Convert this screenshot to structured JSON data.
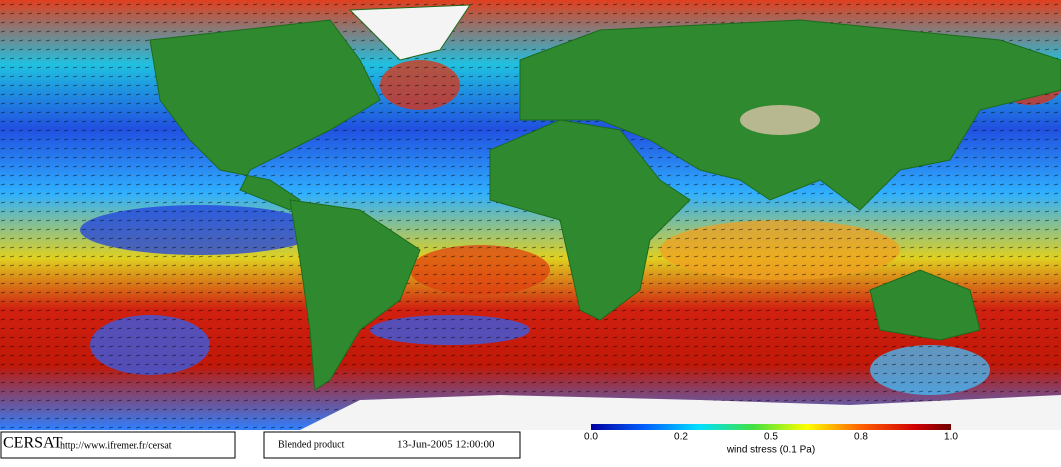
{
  "footer": {
    "logo": "CERSAT",
    "url": "http://www.ifremer.fr/cersat",
    "product": "Blended product",
    "date": "13-Jun-2005 12:00:00"
  },
  "colorbar": {
    "labels": [
      "0.0",
      "0.2",
      "0.5",
      "0.8",
      "1.0"
    ],
    "title": "wind stress (0.1 Pa)"
  }
}
